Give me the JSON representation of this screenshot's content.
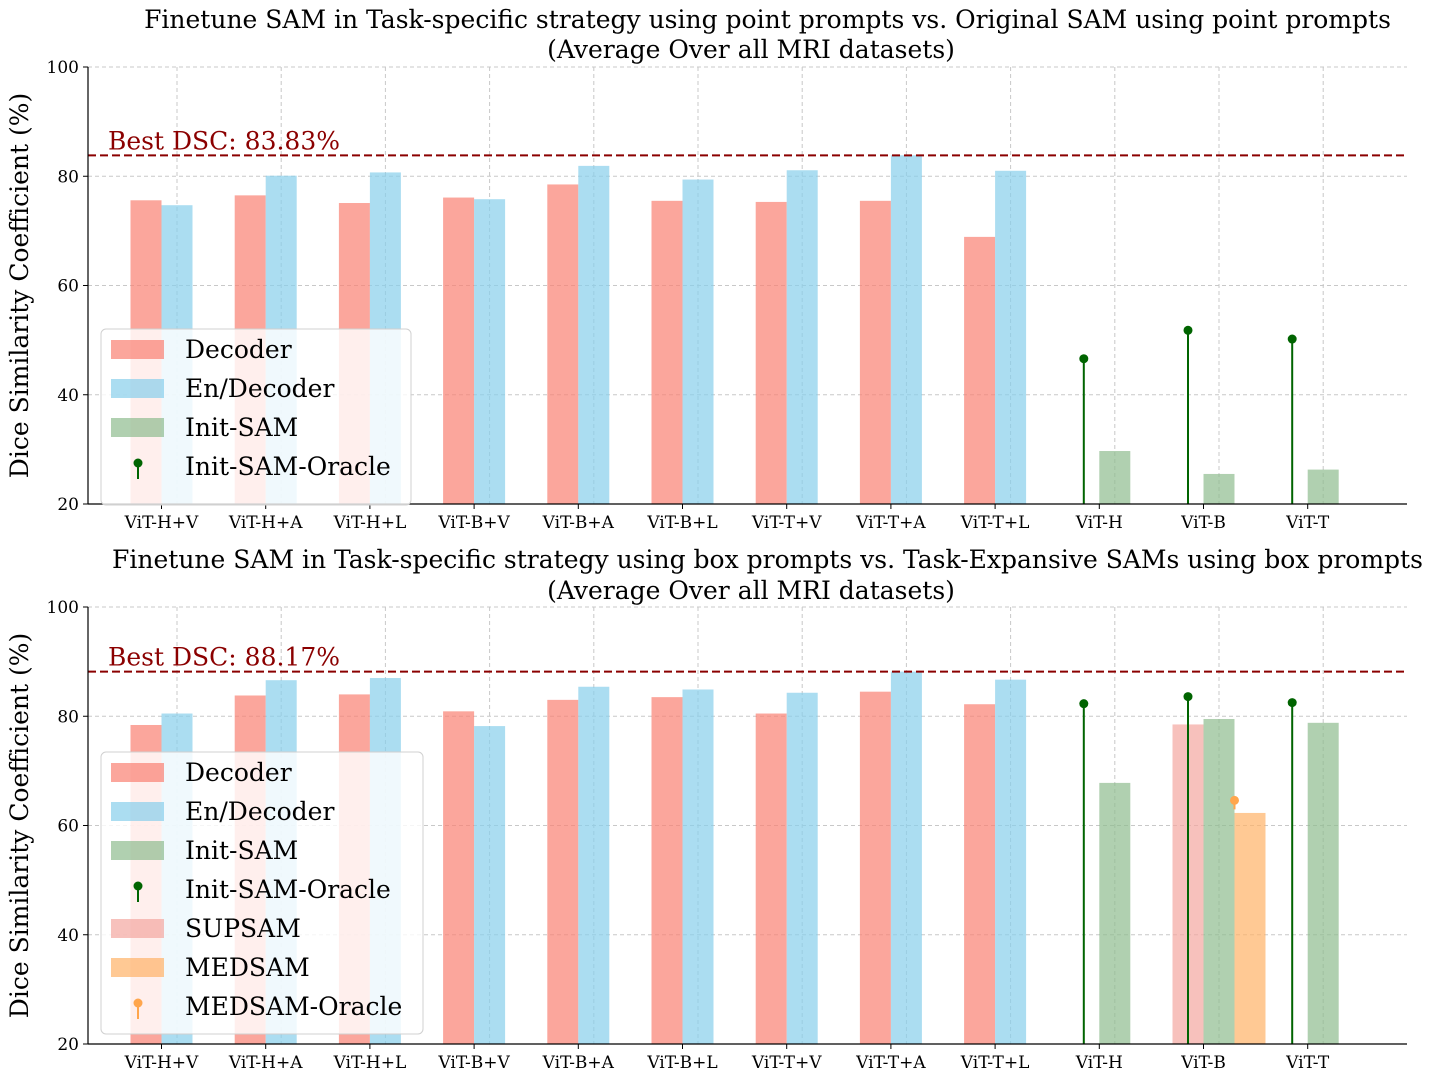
{
  "chart_data": [
    {
      "type": "bar",
      "title": "Finetune SAM in Task-specific strategy using point prompts vs. Original SAM using point prompts",
      "subtitle": "(Average Over all MRI datasets)",
      "xlabel": "",
      "ylabel": "Dice Similarity Coefficient (%)",
      "ylim": [
        20,
        100
      ],
      "yticks": [
        "20",
        "40",
        "60",
        "80",
        "100"
      ],
      "grid": true,
      "legend_position": "lower-left",
      "categories": [
        "ViT-H+V",
        "ViT-H+A",
        "ViT-H+L",
        "ViT-B+V",
        "ViT-B+A",
        "ViT-B+L",
        "ViT-T+V",
        "ViT-T+A",
        "ViT-T+L",
        "ViT-H",
        "ViT-B",
        "ViT-T"
      ],
      "best_line": {
        "value": 83.83,
        "label": "Best DSC: 83.83%",
        "color": "#8b0000"
      },
      "series": [
        {
          "name": "Decoder",
          "kind": "bar",
          "slot": 0,
          "color": "#fa8072",
          "values": [
            75.6,
            76.5,
            75.1,
            76.1,
            78.5,
            75.5,
            75.3,
            75.5,
            68.9,
            null,
            null,
            null
          ]
        },
        {
          "name": "En/Decoder",
          "kind": "bar",
          "slot": 1,
          "color": "#87ceeb",
          "values": [
            74.7,
            80.1,
            80.7,
            75.8,
            81.9,
            79.4,
            81.1,
            83.83,
            81.0,
            null,
            null,
            null
          ]
        },
        {
          "name": "Init-SAM",
          "kind": "bar",
          "slot": 1,
          "color": "#8fbc8f",
          "values": [
            null,
            null,
            null,
            null,
            null,
            null,
            null,
            null,
            null,
            29.7,
            25.5,
            26.3
          ]
        },
        {
          "name": "Init-SAM-Oracle",
          "kind": "stem",
          "slot": 0.5,
          "color": "#006400",
          "values": [
            null,
            null,
            null,
            null,
            null,
            null,
            null,
            null,
            null,
            46.6,
            51.8,
            50.2
          ]
        }
      ]
    },
    {
      "type": "bar",
      "title": "Finetune SAM in Task-specific strategy using box prompts vs. Task-Expansive SAMs using box prompts",
      "subtitle": "(Average Over all MRI datasets)",
      "xlabel": "",
      "ylabel": "Dice Similarity Coefficient (%)",
      "ylim": [
        20,
        100
      ],
      "yticks": [
        "20",
        "40",
        "60",
        "80",
        "100"
      ],
      "grid": true,
      "legend_position": "lower-left",
      "categories": [
        "ViT-H+V",
        "ViT-H+A",
        "ViT-H+L",
        "ViT-B+V",
        "ViT-B+A",
        "ViT-B+L",
        "ViT-T+V",
        "ViT-T+A",
        "ViT-T+L",
        "ViT-H",
        "ViT-B",
        "ViT-T"
      ],
      "best_line": {
        "value": 88.17,
        "label": "Best DSC: 88.17%",
        "color": "#8b0000"
      },
      "series": [
        {
          "name": "Decoder",
          "kind": "bar",
          "slot": 0,
          "color": "#fa8072",
          "values": [
            78.4,
            83.8,
            84.0,
            80.9,
            83.0,
            83.5,
            80.5,
            84.5,
            82.2,
            null,
            null,
            null
          ]
        },
        {
          "name": "En/Decoder",
          "kind": "bar",
          "slot": 1,
          "color": "#87ceeb",
          "values": [
            80.5,
            86.6,
            87.0,
            78.2,
            85.4,
            84.9,
            84.3,
            88.17,
            86.7,
            null,
            null,
            null
          ]
        },
        {
          "name": "Init-SAM",
          "kind": "bar",
          "slot": 1,
          "color": "#8fbc8f",
          "values": [
            null,
            null,
            null,
            null,
            null,
            null,
            null,
            null,
            null,
            67.8,
            79.5,
            78.8
          ]
        },
        {
          "name": "Init-SAM-Oracle",
          "kind": "stem",
          "slot": 0.5,
          "color": "#006400",
          "values": [
            null,
            null,
            null,
            null,
            null,
            null,
            null,
            null,
            null,
            82.3,
            83.6,
            82.5
          ]
        },
        {
          "name": "SUPSAM",
          "kind": "bar",
          "slot": 0,
          "color": "#f4a6a0",
          "values": [
            null,
            null,
            null,
            null,
            null,
            null,
            null,
            null,
            null,
            null,
            78.5,
            null
          ]
        },
        {
          "name": "MEDSAM",
          "kind": "bar",
          "slot": 2,
          "color": "#ffb266",
          "values": [
            null,
            null,
            null,
            null,
            null,
            null,
            null,
            null,
            null,
            null,
            62.3,
            null
          ]
        },
        {
          "name": "MEDSAM-Oracle",
          "kind": "stem",
          "slot": 2,
          "color": "#ffa64d",
          "values": [
            null,
            null,
            null,
            null,
            null,
            null,
            null,
            null,
            null,
            null,
            64.6,
            null
          ]
        }
      ]
    }
  ]
}
